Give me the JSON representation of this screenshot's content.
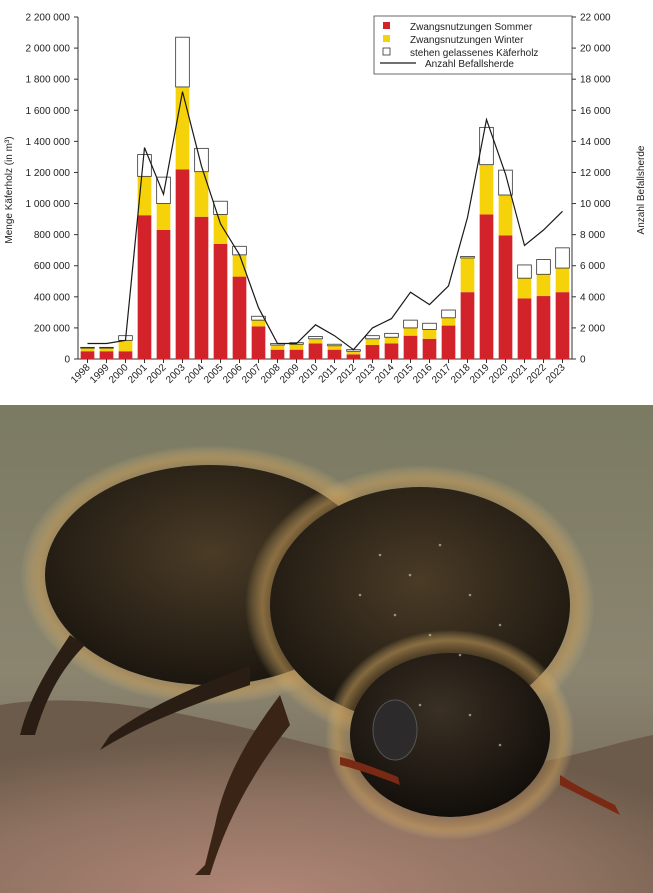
{
  "colors": {
    "sommer": "#d2232a",
    "winter": "#f5d20a",
    "stehen": "#ffffff",
    "line": "#1a1a1a"
  },
  "chart_data": {
    "type": "bar",
    "stacked": true,
    "categories": [
      "1998",
      "1999",
      "2000",
      "2001",
      "2002",
      "2003",
      "2004",
      "2005",
      "2006",
      "2007",
      "2008",
      "2009",
      "2010",
      "2011",
      "2012",
      "2013",
      "2014",
      "2015",
      "2016",
      "2017",
      "2018",
      "2019",
      "2020",
      "2021",
      "2022",
      "2023"
    ],
    "series": [
      {
        "name": "Zwangsnutzungen Sommer",
        "axis": "left",
        "color": "#d2232a",
        "values": [
          50000,
          50000,
          50000,
          925000,
          830000,
          1220000,
          915000,
          740000,
          530000,
          210000,
          60000,
          60000,
          100000,
          60000,
          30000,
          90000,
          100000,
          150000,
          130000,
          215000,
          430000,
          930000,
          795000,
          390000,
          405000,
          430000
        ]
      },
      {
        "name": "Zwangsnutzungen Winter",
        "axis": "left",
        "color": "#f5d20a",
        "values": [
          20000,
          20000,
          70000,
          250000,
          170000,
          530000,
          290000,
          190000,
          140000,
          40000,
          30000,
          35000,
          30000,
          25000,
          20000,
          40000,
          40000,
          50000,
          60000,
          50000,
          220000,
          320000,
          260000,
          130000,
          140000,
          155000
        ]
      },
      {
        "name": "stehen gelassenes Käferholz",
        "axis": "left",
        "color": "#ffffff",
        "values": [
          5000,
          5000,
          30000,
          140000,
          170000,
          320000,
          150000,
          85000,
          55000,
          25000,
          10000,
          10000,
          15000,
          10000,
          10000,
          20000,
          25000,
          50000,
          40000,
          50000,
          10000,
          240000,
          160000,
          85000,
          95000,
          130000
        ]
      },
      {
        "name": "Anzahl Befallsherde",
        "axis": "right",
        "type": "line",
        "color": "#1a1a1a",
        "values": [
          1000,
          1000,
          1200,
          13600,
          10600,
          17200,
          12400,
          8700,
          6700,
          3300,
          1000,
          1000,
          2200,
          1500,
          600,
          2000,
          2600,
          4300,
          3500,
          4700,
          9100,
          15400,
          11900,
          7300,
          8300,
          9500
        ]
      }
    ],
    "ylabel": "Menge Käferholz (in m³)",
    "ylabel_right": "Anzahl Befallsherde",
    "ylim": [
      0,
      2200000
    ],
    "ylim_right": [
      0,
      22000
    ],
    "yticks": [
      "0",
      "200 000",
      "400 000",
      "600 000",
      "800 000",
      "1 000 000",
      "1 200 000",
      "1 400 000",
      "1 600 000",
      "1 800 000",
      "2 000 000",
      "2 200 000"
    ],
    "yticks_right": [
      "0",
      "2 000",
      "4 000",
      "6 000",
      "8 000",
      "10 000",
      "12 000",
      "14 000",
      "16 000",
      "18 000",
      "20 000",
      "22 000"
    ],
    "legend_position": "top-right",
    "grid": false
  },
  "photo": {
    "subject": "bark-beetle-macro-photo"
  }
}
